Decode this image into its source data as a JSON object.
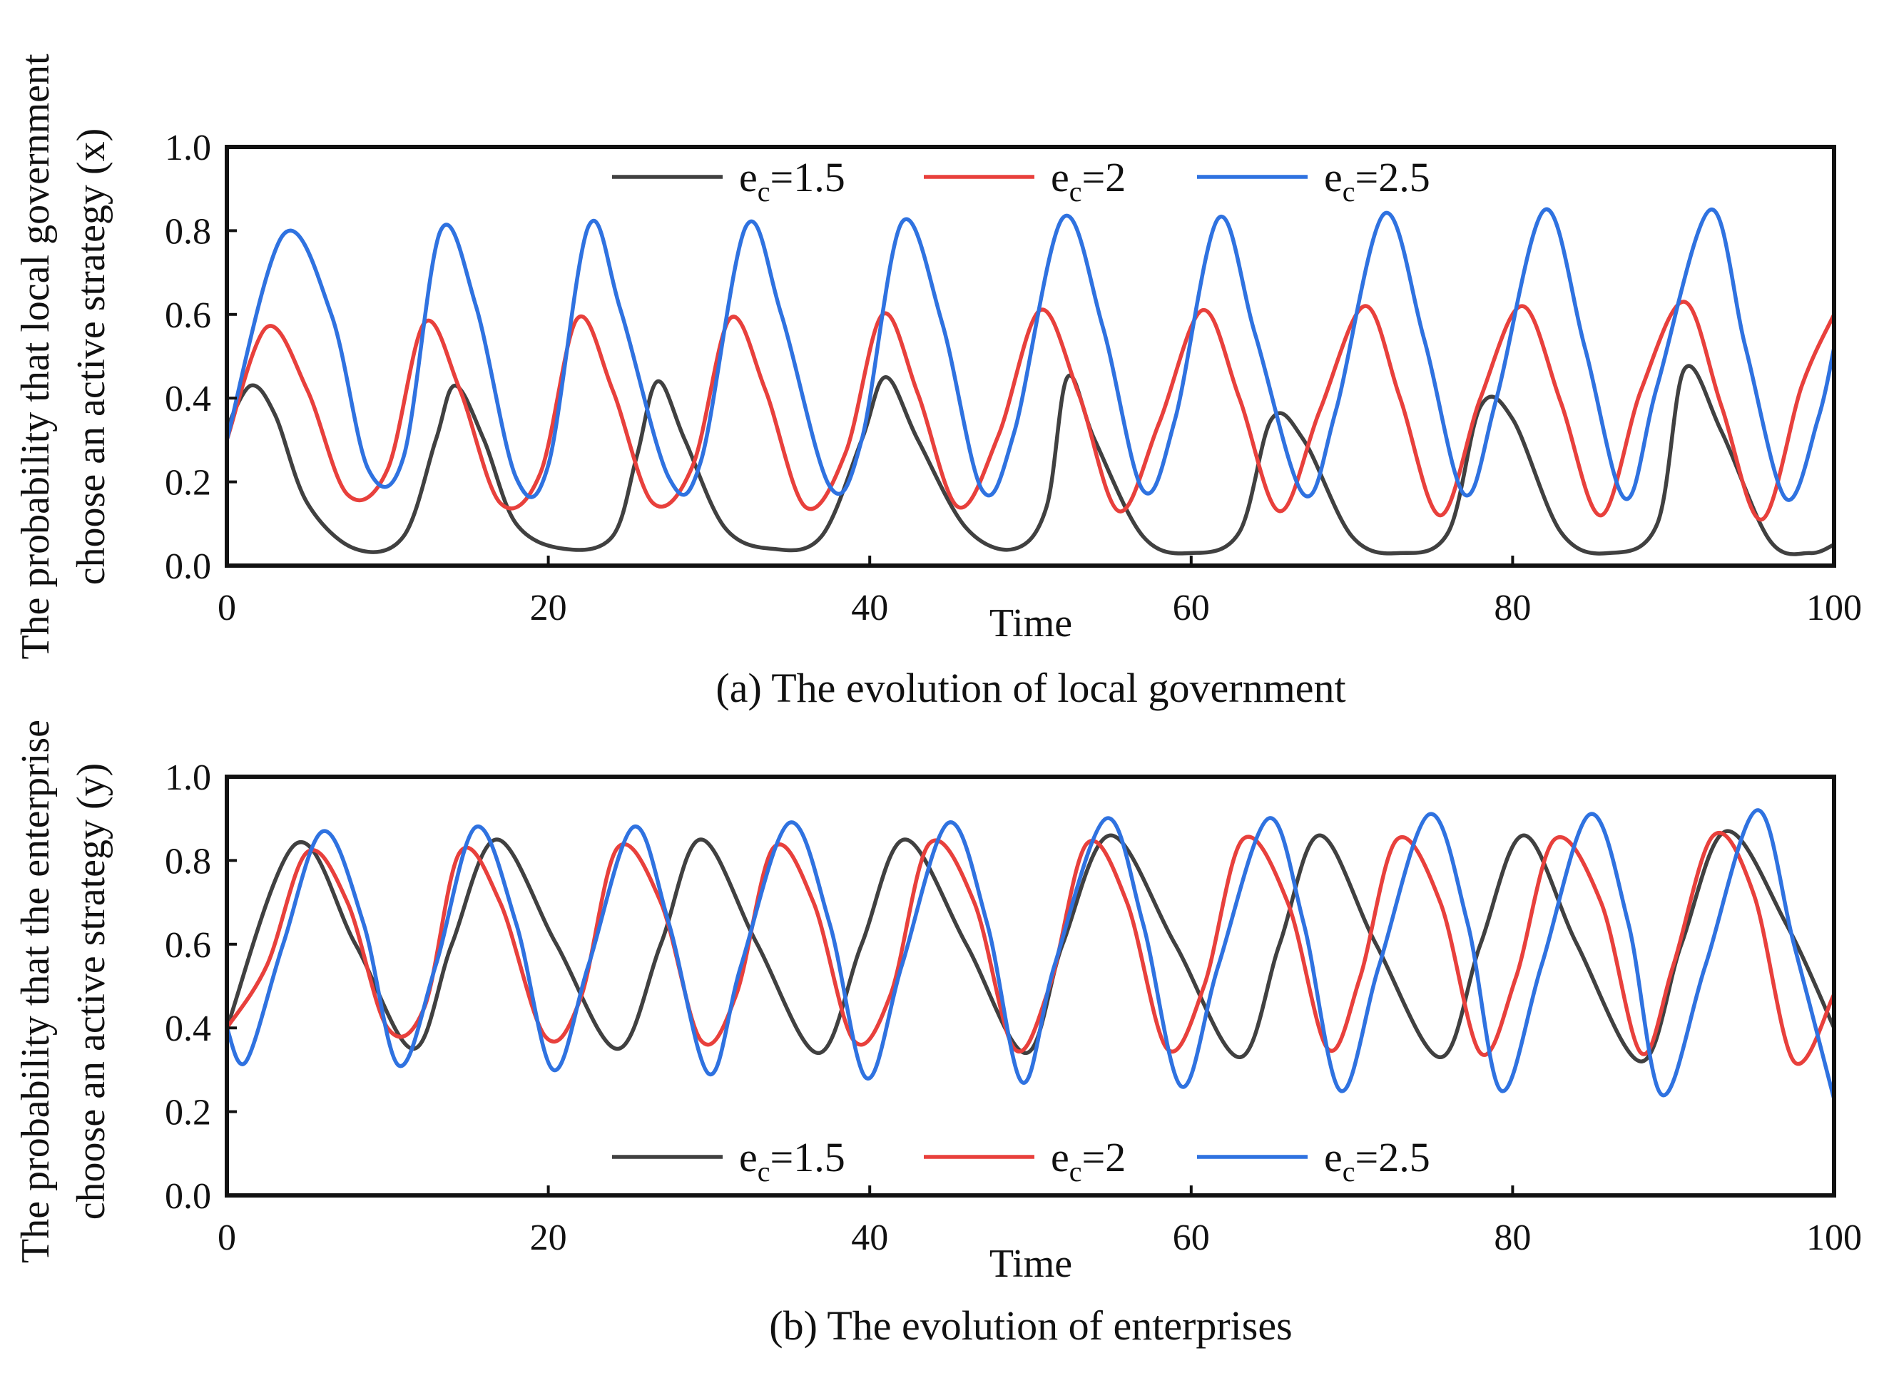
{
  "chart_data": [
    {
      "type": "line",
      "caption": "(a) The evolution of local government",
      "xlabel": "Time",
      "ylabel_line1": "The probability that local government",
      "ylabel_line2": "choose an active strategy (x)",
      "xlim": [
        0,
        100
      ],
      "ylim": [
        0,
        1.0
      ],
      "x_ticks": [
        "0",
        "20",
        "40",
        "60",
        "80",
        "100"
      ],
      "y_ticks": [
        "0.0",
        "0.2",
        "0.4",
        "0.6",
        "0.8",
        "1.0"
      ],
      "legend_position": "top-center",
      "series": [
        {
          "name_base": "e",
          "name_sub": "c",
          "name_rest": "=1.5",
          "color": "#404040",
          "x": [
            0,
            1.5,
            3,
            5,
            8,
            11,
            13,
            14.2,
            16,
            18,
            21,
            24,
            25.5,
            26.8,
            28.5,
            31,
            34,
            37,
            39.5,
            41,
            43,
            46,
            49,
            51,
            52.3,
            54,
            57,
            60,
            63,
            65,
            67,
            70,
            73,
            76,
            78,
            80,
            83,
            86,
            89,
            90.7,
            93,
            96,
            98.5,
            100
          ],
          "y": [
            0.33,
            0.43,
            0.36,
            0.15,
            0.04,
            0.07,
            0.3,
            0.43,
            0.3,
            0.1,
            0.04,
            0.07,
            0.26,
            0.44,
            0.3,
            0.09,
            0.04,
            0.07,
            0.3,
            0.45,
            0.3,
            0.09,
            0.04,
            0.14,
            0.45,
            0.3,
            0.07,
            0.03,
            0.08,
            0.35,
            0.3,
            0.07,
            0.03,
            0.08,
            0.38,
            0.35,
            0.08,
            0.03,
            0.1,
            0.47,
            0.32,
            0.06,
            0.03,
            0.05
          ]
        },
        {
          "name_base": "e",
          "name_sub": "c",
          "name_rest": "=2",
          "color": "#e8403c",
          "x": [
            0,
            2.5,
            5,
            7.5,
            10,
            12.3,
            14.5,
            17,
            19.5,
            21.8,
            24,
            26.5,
            29,
            31.3,
            33.5,
            36,
            38.5,
            40.8,
            43,
            45.5,
            48,
            50.6,
            53,
            55.5,
            58,
            60.7,
            63,
            65.5,
            68,
            70.8,
            73,
            75.5,
            78,
            80.6,
            83,
            85.5,
            88,
            90.7,
            93,
            95.5,
            98,
            100
          ],
          "y": [
            0.3,
            0.57,
            0.42,
            0.17,
            0.23,
            0.58,
            0.42,
            0.15,
            0.22,
            0.59,
            0.42,
            0.15,
            0.24,
            0.59,
            0.42,
            0.14,
            0.27,
            0.6,
            0.41,
            0.14,
            0.31,
            0.61,
            0.41,
            0.13,
            0.34,
            0.61,
            0.4,
            0.13,
            0.37,
            0.62,
            0.4,
            0.12,
            0.4,
            0.62,
            0.39,
            0.12,
            0.42,
            0.63,
            0.38,
            0.11,
            0.43,
            0.6
          ]
        },
        {
          "name_base": "e",
          "name_sub": "c",
          "name_rest": "=2.5",
          "color": "#2f72e0",
          "x": [
            0,
            3.5,
            6.5,
            8.8,
            11,
            13.3,
            15.5,
            18,
            20,
            22.5,
            24.5,
            27.5,
            29.5,
            32.3,
            34.5,
            37.5,
            39.5,
            42,
            44.5,
            47,
            49,
            52,
            54.5,
            57,
            59,
            61.7,
            64,
            67,
            69,
            72,
            74.5,
            77,
            79,
            82,
            84.5,
            87,
            89,
            92.3,
            94.5,
            97,
            99,
            100
          ],
          "y": [
            0.3,
            0.79,
            0.6,
            0.23,
            0.26,
            0.8,
            0.62,
            0.21,
            0.24,
            0.81,
            0.61,
            0.21,
            0.25,
            0.81,
            0.6,
            0.19,
            0.3,
            0.82,
            0.58,
            0.18,
            0.32,
            0.83,
            0.57,
            0.18,
            0.35,
            0.83,
            0.55,
            0.17,
            0.37,
            0.84,
            0.54,
            0.17,
            0.4,
            0.85,
            0.52,
            0.16,
            0.43,
            0.85,
            0.52,
            0.16,
            0.35,
            0.52
          ]
        }
      ]
    },
    {
      "type": "line",
      "caption": "(b) The evolution of enterprises",
      "xlabel": "Time",
      "ylabel_line1": "The probability that the enterprise",
      "ylabel_line2": "choose an active strategy (y)",
      "xlim": [
        0,
        100
      ],
      "ylim": [
        0,
        1.0
      ],
      "x_ticks": [
        "0",
        "20",
        "40",
        "60",
        "80",
        "100"
      ],
      "y_ticks": [
        "0.0",
        "0.2",
        "0.4",
        "0.6",
        "0.8",
        "1.0"
      ],
      "legend_position": "bottom-center",
      "series": [
        {
          "name_base": "e",
          "name_sub": "c",
          "name_rest": "=1.5",
          "color": "#404040",
          "x": [
            0,
            4.3,
            8,
            11.6,
            14,
            16.8,
            20.5,
            24.3,
            27,
            29.5,
            33,
            36.8,
            39.5,
            42.2,
            46,
            49.7,
            52,
            55,
            59,
            63,
            65.5,
            68,
            71.5,
            75.5,
            78,
            80.7,
            84,
            88,
            90.5,
            93.3,
            97,
            100
          ],
          "y": [
            0.4,
            0.84,
            0.6,
            0.35,
            0.6,
            0.85,
            0.6,
            0.35,
            0.6,
            0.85,
            0.6,
            0.34,
            0.6,
            0.85,
            0.6,
            0.34,
            0.6,
            0.86,
            0.6,
            0.33,
            0.6,
            0.86,
            0.6,
            0.33,
            0.6,
            0.86,
            0.6,
            0.32,
            0.6,
            0.87,
            0.65,
            0.4
          ]
        },
        {
          "name_base": "e",
          "name_sub": "c",
          "name_rest": "=2",
          "color": "#e8403c",
          "x": [
            0,
            2.5,
            5,
            7.5,
            10,
            12.3,
            14.5,
            17,
            19.8,
            22,
            24.3,
            27,
            29.5,
            31.7,
            34,
            36.5,
            39,
            41.3,
            43.7,
            46.5,
            49,
            51.2,
            53.5,
            56,
            58.5,
            60.8,
            63.2,
            66,
            68.5,
            70.5,
            72.8,
            75.5,
            78,
            80.2,
            82.6,
            85.5,
            88,
            90,
            92.5,
            95,
            97.5,
            100
          ],
          "y": [
            0.4,
            0.55,
            0.82,
            0.7,
            0.4,
            0.45,
            0.82,
            0.7,
            0.38,
            0.47,
            0.83,
            0.7,
            0.37,
            0.48,
            0.83,
            0.7,
            0.37,
            0.48,
            0.84,
            0.7,
            0.35,
            0.5,
            0.84,
            0.7,
            0.35,
            0.5,
            0.85,
            0.7,
            0.35,
            0.52,
            0.85,
            0.7,
            0.34,
            0.52,
            0.85,
            0.7,
            0.34,
            0.55,
            0.86,
            0.72,
            0.32,
            0.48
          ]
        },
        {
          "name_base": "e",
          "name_sub": "c",
          "name_rest": "=2.5",
          "color": "#2f72e0",
          "x": [
            0,
            1.2,
            3.5,
            6,
            8.5,
            10.7,
            13,
            15.5,
            18,
            20.3,
            22.5,
            25.3,
            27.5,
            30,
            32,
            35,
            37.5,
            39.8,
            42,
            44.9,
            47.3,
            49.5,
            51.5,
            54.7,
            57,
            59.4,
            61.7,
            64.8,
            67,
            69.3,
            71.7,
            74.8,
            77.2,
            79.3,
            81.8,
            84.8,
            87.2,
            89.3,
            92,
            95.2,
            97.5,
            100
          ],
          "y": [
            0.4,
            0.32,
            0.6,
            0.87,
            0.65,
            0.31,
            0.55,
            0.88,
            0.65,
            0.3,
            0.55,
            0.88,
            0.65,
            0.29,
            0.55,
            0.89,
            0.65,
            0.28,
            0.55,
            0.89,
            0.65,
            0.27,
            0.55,
            0.9,
            0.65,
            0.26,
            0.55,
            0.9,
            0.65,
            0.25,
            0.55,
            0.91,
            0.65,
            0.25,
            0.55,
            0.91,
            0.65,
            0.24,
            0.55,
            0.92,
            0.6,
            0.23
          ]
        }
      ]
    }
  ]
}
